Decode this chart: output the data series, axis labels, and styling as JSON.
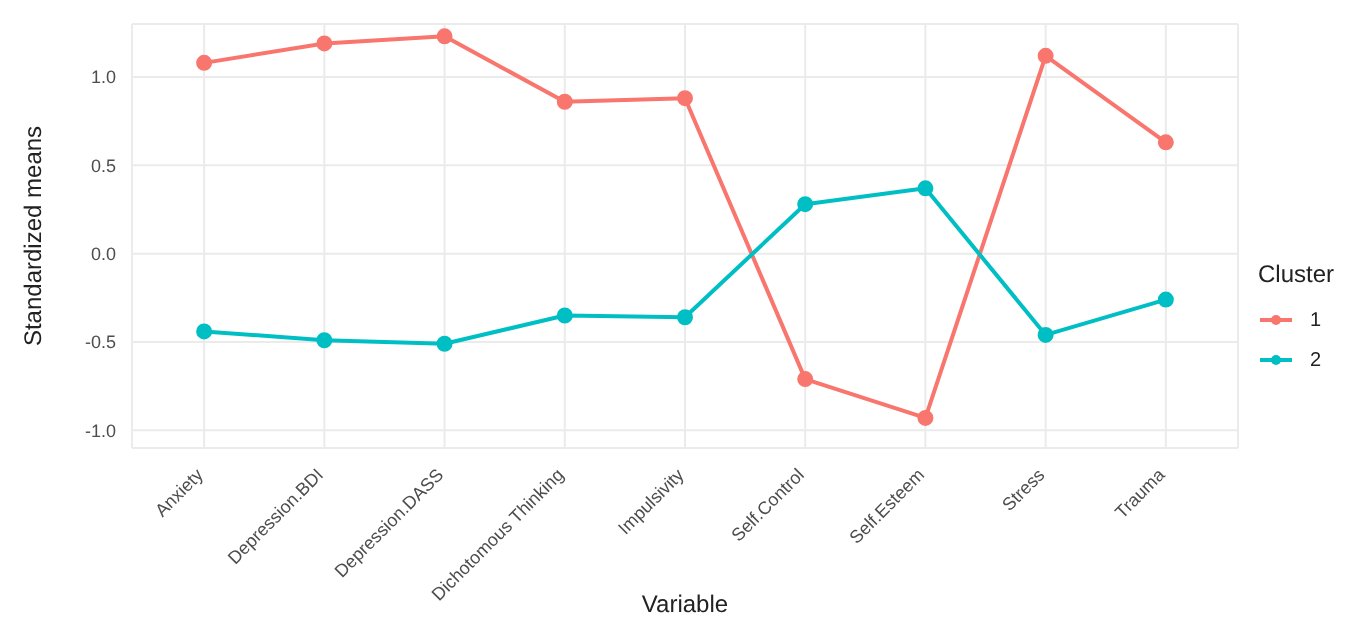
{
  "chart_data": {
    "type": "line",
    "xlabel": "Variable",
    "ylabel": "Standardized means",
    "legend_title": "Cluster",
    "categories": [
      "Anxiety",
      "Depression.BDI",
      "Depression.DASS",
      "Dichotomous Thinking",
      "Impulsivity",
      "Self.Control",
      "Self.Esteem",
      "Stress",
      "Trauma"
    ],
    "series": [
      {
        "name": "1",
        "color": "#f8766d",
        "values": [
          1.08,
          1.19,
          1.23,
          0.86,
          0.88,
          -0.71,
          -0.93,
          1.12,
          0.63
        ]
      },
      {
        "name": "2",
        "color": "#00bfc4",
        "values": [
          -0.44,
          -0.49,
          -0.51,
          -0.35,
          -0.36,
          0.28,
          0.37,
          -0.46,
          -0.26
        ]
      }
    ],
    "ylim": [
      -1.1,
      1.3
    ],
    "yticks": [
      {
        "value": -1,
        "label": "-1.0"
      },
      {
        "value": -0.5,
        "label": "-0.5"
      },
      {
        "value": 0,
        "label": "0.0"
      },
      {
        "value": 0.5,
        "label": "0.5"
      },
      {
        "value": 1,
        "label": "1.0"
      }
    ],
    "grid": true,
    "legend": "right",
    "marker": "circle",
    "line_style": "solid"
  }
}
